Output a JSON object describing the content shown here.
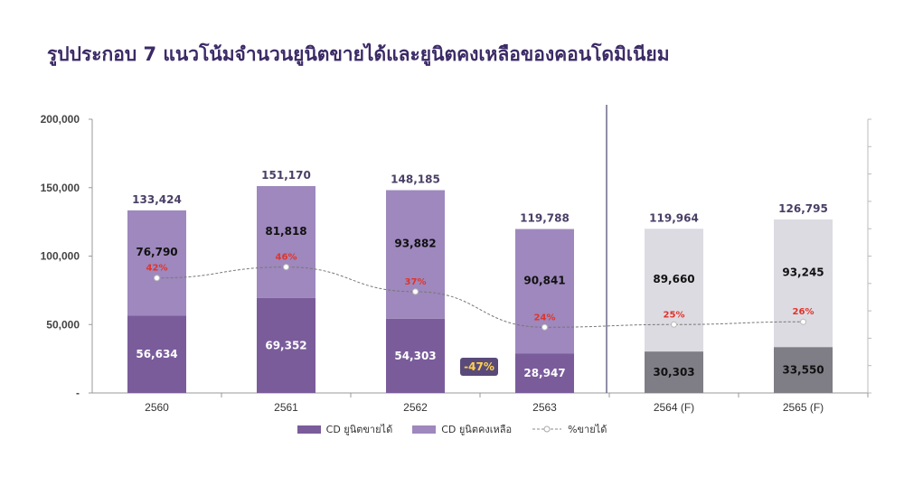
{
  "title": "รูปประกอบ 7 แนวโน้มจำนวนยูนิตขายได้และยูนิตคงเหลือของคอนโดมิเนียม",
  "chart_data": {
    "type": "bar",
    "stacked": true,
    "categories": [
      "2560",
      "2561",
      "2562",
      "2563",
      "2564 (F)",
      "2565 (F)"
    ],
    "series": [
      {
        "name": "CD ยูนิตขายได้",
        "values": [
          56634,
          69352,
          54303,
          28947,
          30303,
          33550
        ],
        "labels": [
          "56,634",
          "69,352",
          "54,303",
          "28,947",
          "30,303",
          "33,550"
        ]
      },
      {
        "name": "CD ยูนิตคงเหลือ",
        "values": [
          76790,
          81818,
          93882,
          90841,
          89660,
          93245
        ],
        "labels": [
          "76,790",
          "81,818",
          "93,882",
          "90,841",
          "89,660",
          "93,245"
        ]
      }
    ],
    "totals": [
      "133,424",
      "151,170",
      "148,185",
      "119,788",
      "119,964",
      "126,795"
    ],
    "line_series": {
      "name": "%ขายได้",
      "values": [
        42,
        46,
        37,
        24,
        25,
        26
      ],
      "labels": [
        "42%",
        "46%",
        "37%",
        "24%",
        "25%",
        "26%"
      ]
    },
    "callout": "-47%",
    "yticks": [
      "-",
      "50,000",
      "100,000",
      "150,000",
      "200,000"
    ],
    "ylim": [
      0,
      200000
    ],
    "forecast_start_index": 4,
    "colors": {
      "sold": "#7a5c9b",
      "remaining": "#9e88bd",
      "sold_forecast": "#7f7e86",
      "remaining_forecast": "#dcdbe2",
      "pct_text": "#e0342a",
      "callout_bg": "#5a4a7a",
      "callout_text": "#ffd24a",
      "axis": "#6a6a8a",
      "title": "#3b2a66"
    }
  }
}
